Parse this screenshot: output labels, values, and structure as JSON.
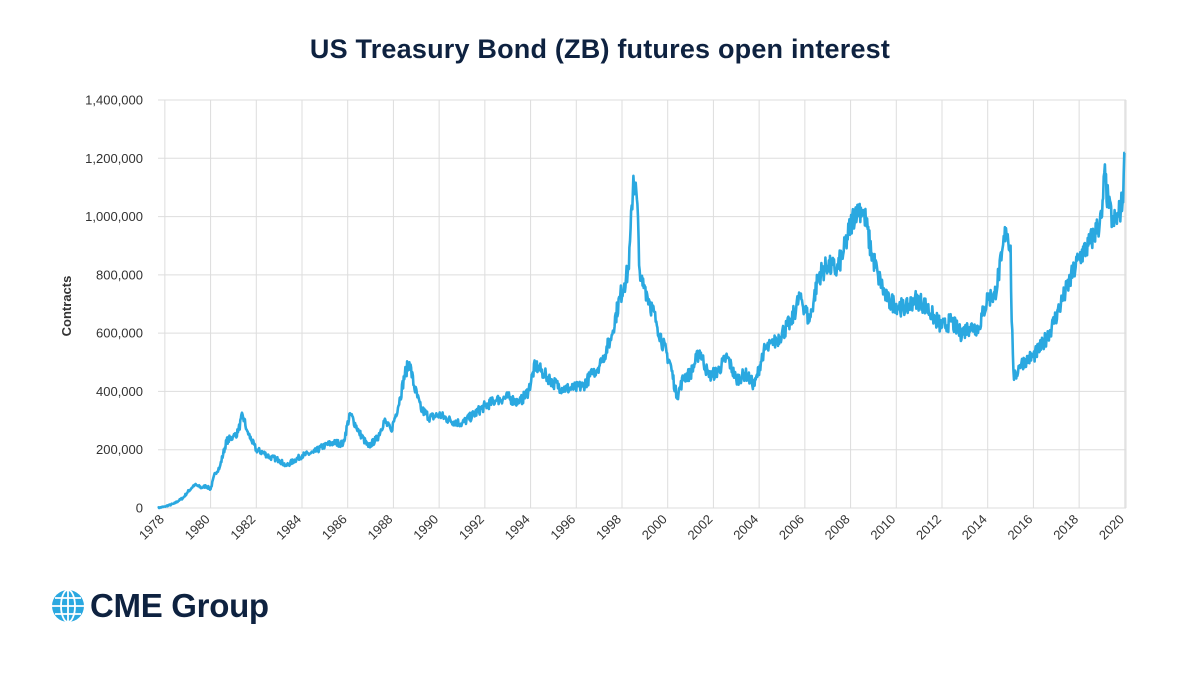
{
  "chart_data": {
    "type": "line",
    "title": "US Treasury Bond (ZB) futures open interest",
    "xlabel": "",
    "ylabel": "Contracts",
    "ylim": [
      0,
      1400000
    ],
    "xlim": [
      1977.7,
      2020.05
    ],
    "y_ticks": [
      0,
      200000,
      400000,
      600000,
      800000,
      1000000,
      1200000,
      1400000
    ],
    "y_tick_labels": [
      "0",
      "200,000",
      "400,000",
      "600,000",
      "800,000",
      "1,000,000",
      "1,200,000",
      "1,400,000"
    ],
    "x_ticks": [
      1978,
      1980,
      1982,
      1984,
      1986,
      1988,
      1990,
      1992,
      1994,
      1996,
      1998,
      2000,
      2002,
      2004,
      2006,
      2008,
      2010,
      2012,
      2014,
      2016,
      2018,
      2020
    ],
    "x_tick_labels": [
      "1978",
      "1980",
      "1982",
      "1984",
      "1986",
      "1988",
      "1990",
      "1992",
      "1994",
      "1996",
      "1998",
      "2000",
      "2002",
      "2004",
      "2006",
      "2008",
      "2010",
      "2012",
      "2014",
      "2016",
      "2018",
      "2020"
    ],
    "grid": true,
    "series": [
      {
        "name": "Open interest",
        "color": "#2aa8e0",
        "x": [
          1977.7,
          1978.0,
          1978.4,
          1978.8,
          1979.0,
          1979.3,
          1979.6,
          1979.8,
          1980.0,
          1980.2,
          1980.4,
          1980.7,
          1981.0,
          1981.2,
          1981.4,
          1981.6,
          1981.8,
          1982.0,
          1982.3,
          1982.6,
          1983.0,
          1983.3,
          1983.6,
          1984.0,
          1984.5,
          1985.0,
          1985.4,
          1985.8,
          1986.1,
          1986.5,
          1986.9,
          1987.3,
          1987.6,
          1987.9,
          1988.1,
          1988.3,
          1988.5,
          1988.7,
          1988.9,
          1989.2,
          1989.6,
          1990.0,
          1990.5,
          1991.0,
          1991.5,
          1992.0,
          1992.5,
          1993.0,
          1993.5,
          1993.9,
          1994.2,
          1994.6,
          1995.0,
          1995.4,
          1995.9,
          1996.3,
          1996.7,
          1997.1,
          1997.5,
          1997.9,
          1998.1,
          1998.3,
          1998.5,
          1998.65,
          1998.8,
          1999.0,
          1999.2,
          1999.5,
          1999.8,
          2000.1,
          2000.4,
          2000.7,
          2001.0,
          2001.4,
          2001.8,
          2002.2,
          2002.6,
          2003.0,
          2003.4,
          2003.8,
          2004.2,
          2004.6,
          2005.0,
          2005.4,
          2005.8,
          2006.2,
          2006.6,
          2007.0,
          2007.4,
          2007.7,
          2008.0,
          2008.3,
          2008.6,
          2008.9,
          2009.2,
          2009.6,
          2010.0,
          2010.4,
          2010.8,
          2011.2,
          2011.6,
          2012.0,
          2012.4,
          2012.8,
          2013.2,
          2013.6,
          2014.0,
          2014.3,
          2014.6,
          2014.8,
          2015.0,
          2015.05,
          2015.15,
          2015.4,
          2015.7,
          2016.0,
          2016.4,
          2016.8,
          2017.2,
          2017.6,
          2018.0,
          2018.4,
          2018.8,
          2019.0,
          2019.1,
          2019.3,
          2019.5,
          2019.7,
          2019.9,
          2020.0
        ],
        "values": [
          0,
          5000,
          15000,
          35000,
          55000,
          80000,
          70000,
          75000,
          65000,
          120000,
          140000,
          230000,
          245000,
          260000,
          320000,
          265000,
          230000,
          200000,
          190000,
          175000,
          165000,
          145000,
          160000,
          180000,
          190000,
          215000,
          225000,
          220000,
          325000,
          260000,
          210000,
          240000,
          300000,
          265000,
          320000,
          380000,
          460000,
          500000,
          420000,
          340000,
          310000,
          320000,
          300000,
          290000,
          320000,
          350000,
          370000,
          380000,
          360000,
          400000,
          490000,
          460000,
          430000,
          410000,
          410000,
          420000,
          460000,
          500000,
          580000,
          720000,
          770000,
          820000,
          1140000,
          1060000,
          780000,
          760000,
          710000,
          640000,
          560000,
          500000,
          380000,
          450000,
          460000,
          540000,
          450000,
          470000,
          520000,
          440000,
          460000,
          420000,
          540000,
          560000,
          600000,
          640000,
          730000,
          640000,
          800000,
          830000,
          820000,
          880000,
          970000,
          1040000,
          1010000,
          880000,
          800000,
          710000,
          700000,
          680000,
          720000,
          700000,
          660000,
          620000,
          640000,
          600000,
          620000,
          620000,
          720000,
          730000,
          850000,
          960000,
          900000,
          640000,
          440000,
          490000,
          510000,
          520000,
          560000,
          620000,
          700000,
          780000,
          860000,
          900000,
          960000,
          1000000,
          1150000,
          1030000,
          980000,
          1000000,
          1050000,
          1220000
        ]
      }
    ]
  },
  "brand": {
    "name": "CME Group",
    "text_color": "#0e2240",
    "accent": "#2aa8e0"
  }
}
